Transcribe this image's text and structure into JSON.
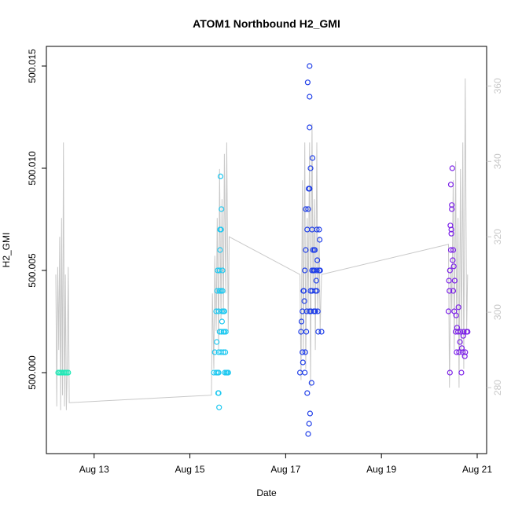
{
  "chart_data": {
    "type": "scatter",
    "title": "ATOM1 Northbound H2_GMI",
    "xlabel": "Date",
    "ylabel": "H2_GMI",
    "ylabel_right": "",
    "xlim_days": [
      12.2,
      21.0
    ],
    "x_ticks": [
      {
        "day": 13,
        "label": "Aug 13"
      },
      {
        "day": 15,
        "label": "Aug 15"
      },
      {
        "day": 17,
        "label": "Aug 17"
      },
      {
        "day": 19,
        "label": "Aug 19"
      },
      {
        "day": 21,
        "label": "Aug 21"
      }
    ],
    "ylim": [
      499.9965,
      500.0155
    ],
    "y_ticks": [
      "500.000",
      "500.005",
      "500.010",
      "500.015"
    ],
    "y_tick_values": [
      500.0,
      500.005,
      500.01,
      500.015
    ],
    "ylim_right": [
      265,
      368
    ],
    "y_ticks_right": [
      280,
      300,
      320,
      340,
      360
    ],
    "grid": false,
    "series": [
      {
        "color": "#1de9b6",
        "x": [
          12.25,
          12.28,
          12.31,
          12.34,
          12.37,
          12.4,
          12.43,
          12.46
        ],
        "y": [
          500.0,
          500.0,
          500.0,
          500.0,
          500.0,
          500.0,
          500.0,
          500.0
        ]
      },
      {
        "color": "#1ec8f0",
        "x": [
          15.5,
          15.52,
          15.55,
          15.57,
          15.58,
          15.6,
          15.6,
          15.62,
          15.62,
          15.63,
          15.65,
          15.65,
          15.66,
          15.67,
          15.68,
          15.7,
          15.7,
          15.72,
          15.73,
          15.75,
          15.78,
          15.8,
          15.55,
          15.58,
          15.6,
          15.62,
          15.65,
          15.68,
          15.7,
          15.63,
          15.66,
          15.72,
          15.74,
          15.76,
          15.6,
          15.64,
          15.67,
          15.61,
          15.59,
          15.56
        ],
        "y": [
          500.0,
          500.001,
          500.003,
          500.004,
          500.005,
          500.003,
          500.001,
          500.004,
          500.005,
          500.006,
          500.007,
          500.004,
          500.002,
          500.003,
          500.005,
          500.001,
          500.003,
          500.002,
          500.0,
          500.002,
          500.0,
          500.0,
          500.0,
          500.0,
          500.0,
          500.002,
          500.001,
          500.004,
          500.002,
          500.007,
          500.008,
          500.003,
          500.001,
          500.0,
          499.999,
          500.0096,
          500.0025,
          499.9983,
          499.999,
          500.0015
        ]
      },
      {
        "color": "#1f3ee8",
        "x": [
          17.3,
          17.32,
          17.35,
          17.37,
          17.4,
          17.42,
          17.45,
          17.47,
          17.5,
          17.5,
          17.5,
          17.52,
          17.53,
          17.55,
          17.55,
          17.57,
          17.6,
          17.6,
          17.62,
          17.65,
          17.65,
          17.67,
          17.7,
          17.72,
          17.75,
          17.35,
          17.4,
          17.45,
          17.5,
          17.55,
          17.6,
          17.65,
          17.7,
          17.42,
          17.48,
          17.52,
          17.58,
          17.62,
          17.68,
          17.38,
          17.44,
          17.5,
          17.56,
          17.46,
          17.47,
          17.49,
          17.51,
          17.54,
          17.59,
          17.43,
          17.41,
          17.36,
          17.33,
          17.39,
          17.61,
          17.64,
          17.66,
          17.71
        ],
        "y": [
          500.0,
          500.002,
          500.003,
          500.004,
          500.005,
          500.006,
          500.007,
          500.008,
          500.009,
          500.012,
          500.015,
          500.004,
          500.003,
          500.005,
          500.007,
          500.006,
          500.005,
          500.003,
          500.004,
          500.007,
          500.005,
          500.003,
          500.007,
          500.005,
          500.002,
          500.001,
          500.0,
          499.999,
          500.003,
          500.004,
          500.006,
          500.004,
          500.005,
          500.008,
          500.009,
          500.01,
          500.005,
          500.003,
          500.002,
          500.004,
          500.003,
          500.0135,
          500.0105,
          500.0142,
          499.997,
          499.9975,
          499.998,
          499.9995,
          500.003,
          500.002,
          500.001,
          500.0005,
          500.0025,
          500.0035,
          500.006,
          500.0045,
          500.0055,
          500.0065
        ]
      },
      {
        "color": "#7b1fe8",
        "x": [
          20.4,
          20.42,
          20.43,
          20.45,
          20.46,
          20.47,
          20.48,
          20.5,
          20.5,
          20.52,
          20.55,
          20.57,
          20.6,
          20.62,
          20.65,
          20.67,
          20.7,
          20.72,
          20.75,
          20.78,
          20.8,
          20.44,
          20.46,
          20.49,
          20.51,
          20.53,
          20.56,
          20.58,
          20.61,
          20.64,
          20.68,
          20.71,
          20.74,
          20.45,
          20.47,
          20.43,
          20.41
        ],
        "y": [
          500.003,
          500.004,
          500.005,
          500.006,
          500.007,
          500.008,
          500.01,
          500.006,
          500.004,
          500.003,
          500.002,
          500.001,
          500.002,
          500.001,
          500.002,
          500.0,
          500.001,
          500.002,
          500.001,
          500.002,
          500.002,
          500.0072,
          500.0068,
          500.0055,
          500.0052,
          500.0045,
          500.0028,
          500.0022,
          500.0032,
          500.0015,
          500.0012,
          500.0018,
          500.0008,
          500.0092,
          500.0082,
          500.0,
          500.0045
        ]
      }
    ],
    "secondary_line": {
      "color": "#c8c8c8",
      "x": [
        12.2,
        12.22,
        12.24,
        12.26,
        12.28,
        12.3,
        12.32,
        12.34,
        12.36,
        12.38,
        12.4,
        12.42,
        12.44,
        12.46,
        12.48,
        15.45,
        15.47,
        15.5,
        15.52,
        15.55,
        15.57,
        15.6,
        15.62,
        15.65,
        15.67,
        15.7,
        15.72,
        15.75,
        15.77,
        15.8,
        15.82,
        17.3,
        17.32,
        17.35,
        17.37,
        17.4,
        17.42,
        17.45,
        17.47,
        17.5,
        17.52,
        17.55,
        17.57,
        17.6,
        17.62,
        17.65,
        17.67,
        17.7,
        17.72,
        17.75,
        20.4,
        20.42,
        20.45,
        20.47,
        20.5,
        20.52,
        20.55,
        20.57,
        20.6,
        20.62,
        20.65,
        20.67,
        20.7,
        20.72,
        20.75,
        20.78,
        20.8
      ],
      "y": [
        310,
        275,
        312,
        290,
        320,
        274,
        325,
        278,
        345,
        275,
        310,
        274,
        285,
        312,
        276,
        278,
        305,
        285,
        315,
        295,
        325,
        290,
        338,
        298,
        330,
        300,
        342,
        305,
        345,
        295,
        320,
        310,
        282,
        335,
        290,
        345,
        285,
        325,
        300,
        345,
        280,
        350,
        305,
        330,
        290,
        345,
        300,
        320,
        295,
        310,
        318,
        280,
        312,
        300,
        335,
        290,
        340,
        295,
        325,
        280,
        338,
        290,
        345,
        285,
        362,
        295,
        310
      ]
    }
  }
}
